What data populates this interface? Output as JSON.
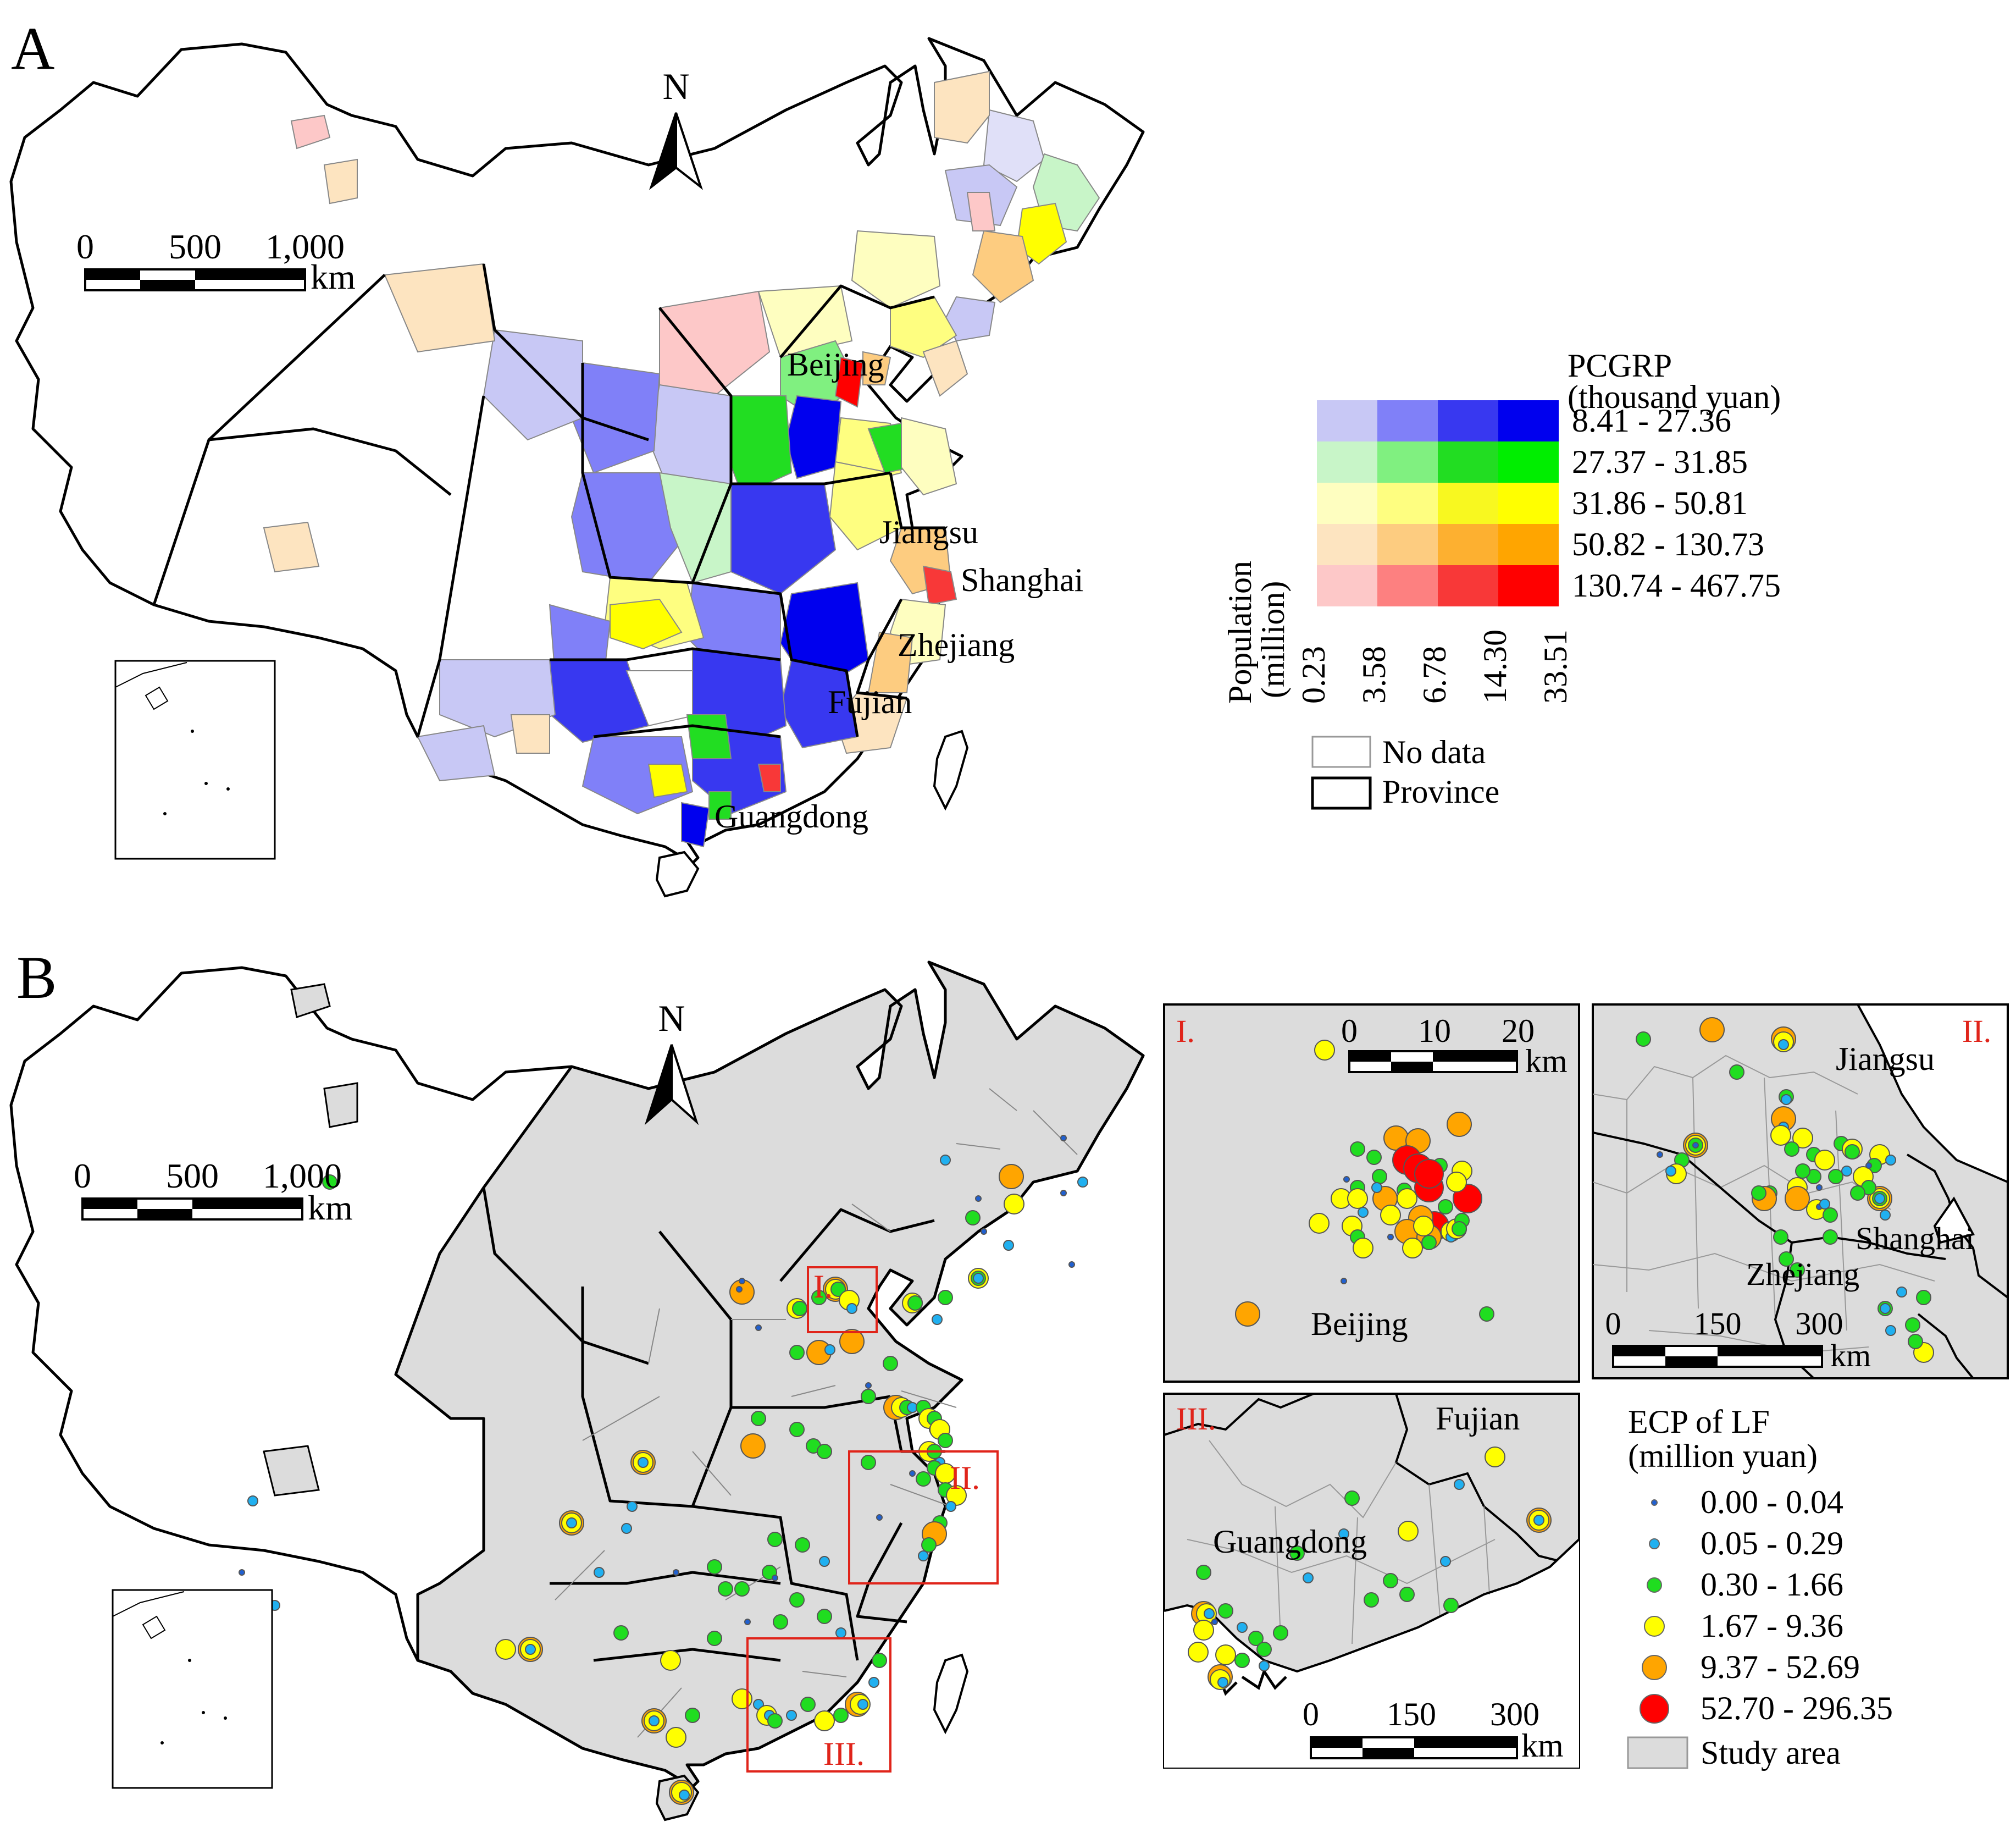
{
  "panel_a": {
    "label": "A",
    "north": "N",
    "scale": {
      "t0": "0",
      "t1": "500",
      "t2": "1,000",
      "unit": "km"
    },
    "province_labels": {
      "beijing": "Beijing",
      "jiangsu": "Jiangsu",
      "shanghai": "Shanghai",
      "zhejiang": "Zhejiang",
      "fujian": "Fujian",
      "guangdong": "Guangdong"
    },
    "legend": {
      "title_line1": "PCGRP",
      "title_line2": "(thousand yuan)",
      "pcgrp_classes": [
        "8.41 - 27.36",
        "27.37 - 31.85",
        "31.86 - 50.81",
        "50.82 - 130.73",
        "130.74 - 467.75"
      ],
      "pop_title_line1": "Population",
      "pop_title_line2": "(million)",
      "pop_breaks": [
        "0.23",
        "3.58",
        "6.78",
        "14.30",
        "33.51"
      ],
      "no_data": "No data",
      "province": "Province",
      "colors": [
        [
          "#c8c8f5",
          "#8080f8",
          "#3838f0",
          "#0000ee"
        ],
        [
          "#c8f5c8",
          "#80f080",
          "#22dd22",
          "#00ee00"
        ],
        [
          "#fefec0",
          "#fefe80",
          "#f8f820",
          "#ffff00"
        ],
        [
          "#fde4c0",
          "#fdcc80",
          "#fdb030",
          "#ffa500"
        ],
        [
          "#fdc8c8",
          "#fd8080",
          "#f83838",
          "#ff0000"
        ]
      ]
    }
  },
  "panel_b": {
    "label": "B",
    "north": "N",
    "scale": {
      "t0": "0",
      "t1": "500",
      "t2": "1,000",
      "unit": "km"
    },
    "box_labels": [
      "I.",
      "II.",
      "III."
    ],
    "inset_1": {
      "numeral": "I.",
      "scale": {
        "t0": "0",
        "t1": "10",
        "t2": "20",
        "unit": "km"
      },
      "city": "Beijing"
    },
    "inset_2": {
      "numeral": "II.",
      "scale": {
        "t0": "0",
        "t1": "150",
        "t2": "300",
        "unit": "km"
      },
      "labels": {
        "jiangsu": "Jiangsu",
        "shanghai": "Shanghai",
        "zhejiang": "Zhejiang"
      }
    },
    "inset_3": {
      "numeral": "III.",
      "scale": {
        "t0": "0",
        "t1": "150",
        "t2": "300",
        "unit": "km"
      },
      "labels": {
        "fujian": "Fujian",
        "guangdong": "Guangdong"
      }
    },
    "legend": {
      "title_line1": "ECP of LF",
      "title_line2": "(million yuan)",
      "classes": [
        {
          "label": "0.00 - 0.04",
          "color": "#2060d0"
        },
        {
          "label": "0.05 - 0.29",
          "color": "#20b0f0"
        },
        {
          "label": "0.30 - 1.66",
          "color": "#20dd20"
        },
        {
          "label": "1.67 - 9.36",
          "color": "#ffff00"
        },
        {
          "label": "9.37 - 52.69",
          "color": "#ffa500"
        },
        {
          "label": "52.70 - 296.35",
          "color": "#ff0000"
        }
      ],
      "study_area": "Study area",
      "study_area_color": "#dcdcdc"
    }
  }
}
